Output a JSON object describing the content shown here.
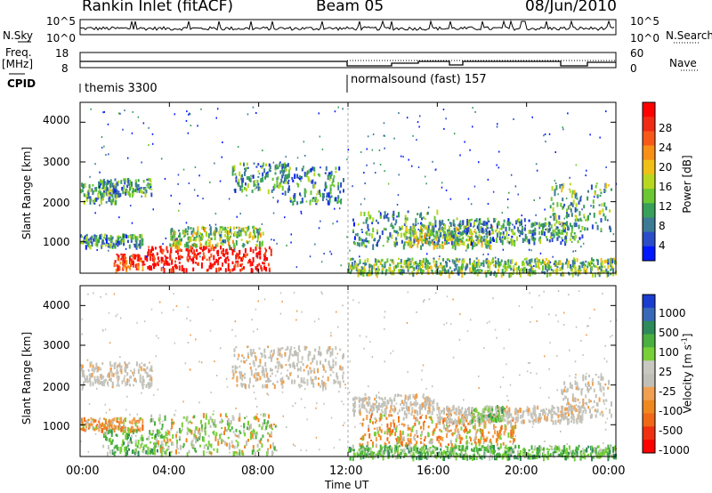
{
  "header": {
    "station": "Rankin Inlet (fitACF)",
    "beam": "Beam 05",
    "date": "08/Jun/2010"
  },
  "left_labels": {
    "nsky": "N.Sky",
    "freq": "Freq.",
    "freq_unit": "[MHz]",
    "cpid": "CPID",
    "nsky_ticks": [
      "10^5",
      "10^0"
    ],
    "freq_ticks": [
      "18",
      "8"
    ]
  },
  "right_labels": {
    "nsearch": "N.Search",
    "nave": "Nave",
    "nsearch_ticks": [
      "10^5",
      "10^0"
    ],
    "nave_ticks": [
      "60",
      "0"
    ]
  },
  "cpid_labels": [
    "themis 3300",
    "normalsound (fast) 157"
  ],
  "chart_data": [
    {
      "type": "heatmap",
      "name": "power",
      "ylabel": "Slant Range [km]",
      "xlabel": "Time UT",
      "x_ticks": [
        "00:00",
        "04:00",
        "08:00",
        "12:00",
        "16:00",
        "20:00",
        "00:00"
      ],
      "y_ticks": [
        1000,
        2000,
        3000,
        4000
      ],
      "ylim": [
        200,
        4500
      ],
      "xlim_hours": [
        0,
        24
      ],
      "colorbar": {
        "label": "Power [dB]",
        "ticks": [
          "4",
          "8",
          "12",
          "16",
          "20",
          "24",
          "28"
        ],
        "colors": [
          "#0018ff",
          "#2c4cc8",
          "#3c7a96",
          "#38a05a",
          "#6cc832",
          "#b8d820",
          "#f0c018",
          "#f89018",
          "#f85818",
          "#f02a14",
          "#ff0000"
        ]
      },
      "regions": [
        {
          "t0": 0.0,
          "t1": 1.6,
          "r0": 2000,
          "r1": 2500,
          "level": 0.35
        },
        {
          "t0": 0.8,
          "t1": 3.2,
          "r0": 2200,
          "r1": 2600,
          "level": 0.3
        },
        {
          "t0": 0.0,
          "t1": 2.8,
          "r0": 900,
          "r1": 1200,
          "level": 0.3
        },
        {
          "t0": 1.5,
          "t1": 3.0,
          "r0": 300,
          "r1": 700,
          "level": 0.85
        },
        {
          "t0": 3.0,
          "t1": 8.6,
          "r0": 300,
          "r1": 900,
          "level": 0.95
        },
        {
          "t0": 4.0,
          "t1": 8.2,
          "r0": 900,
          "r1": 1400,
          "level": 0.45
        },
        {
          "t0": 6.8,
          "t1": 9.4,
          "r0": 2300,
          "r1": 3000,
          "level": 0.3
        },
        {
          "t0": 9.0,
          "t1": 11.8,
          "r0": 2000,
          "r1": 2900,
          "level": 0.28
        },
        {
          "t0": 12.2,
          "t1": 16.0,
          "r0": 900,
          "r1": 1800,
          "level": 0.3
        },
        {
          "t0": 14.5,
          "t1": 18.5,
          "r0": 900,
          "r1": 1400,
          "level": 0.45
        },
        {
          "t0": 16.0,
          "t1": 22.5,
          "r0": 1000,
          "r1": 1600,
          "level": 0.3
        },
        {
          "t0": 21.0,
          "t1": 23.8,
          "r0": 1300,
          "r1": 2500,
          "level": 0.35
        },
        {
          "t0": 12.0,
          "t1": 24.0,
          "r0": 200,
          "r1": 600,
          "level": 0.4
        }
      ]
    },
    {
      "type": "heatmap",
      "name": "velocity",
      "ylabel": "Slant Range [km]",
      "xlabel": "Time UT",
      "x_ticks": [
        "00:00",
        "04:00",
        "08:00",
        "12:00",
        "16:00",
        "20:00",
        "00:00"
      ],
      "y_ticks": [
        1000,
        2000,
        3000,
        4000
      ],
      "ylim": [
        200,
        4500
      ],
      "xlim_hours": [
        0,
        24
      ],
      "colorbar": {
        "label": "Velocity [m s-1]",
        "ticks": [
          "1000",
          "500",
          "100",
          "25",
          "-25",
          "-100",
          "-500",
          "-1000"
        ],
        "colors": [
          "#1a3cd0",
          "#3868b8",
          "#2e8a5a",
          "#4ab040",
          "#78d038",
          "#c8c8c0",
          "#c0c0b8",
          "#f0a050",
          "#f08820",
          "#f06818",
          "#f03010",
          "#ff0000"
        ]
      },
      "regions": [
        {
          "t0": 0.0,
          "t1": 3.2,
          "r0": 2000,
          "r1": 2600,
          "cls": "grey"
        },
        {
          "t0": 0.0,
          "t1": 2.8,
          "r0": 900,
          "r1": 1200,
          "cls": "orange"
        },
        {
          "t0": 1.0,
          "t1": 4.0,
          "r0": 300,
          "r1": 900,
          "cls": "green"
        },
        {
          "t0": 3.0,
          "t1": 8.8,
          "r0": 300,
          "r1": 1300,
          "cls": "greygreen"
        },
        {
          "t0": 6.8,
          "t1": 11.8,
          "r0": 2000,
          "r1": 3000,
          "cls": "grey"
        },
        {
          "t0": 12.2,
          "t1": 16.0,
          "r0": 1300,
          "r1": 1800,
          "cls": "grey"
        },
        {
          "t0": 12.5,
          "t1": 19.5,
          "r0": 500,
          "r1": 1300,
          "cls": "orange"
        },
        {
          "t0": 16.0,
          "t1": 22.5,
          "r0": 1100,
          "r1": 1500,
          "cls": "grey"
        },
        {
          "t0": 17.5,
          "t1": 19.0,
          "r0": 1100,
          "r1": 1500,
          "cls": "green"
        },
        {
          "t0": 21.5,
          "t1": 23.8,
          "r0": 1200,
          "r1": 2300,
          "cls": "grey"
        },
        {
          "t0": 12.0,
          "t1": 24.0,
          "r0": 200,
          "r1": 500,
          "cls": "green"
        }
      ]
    }
  ]
}
